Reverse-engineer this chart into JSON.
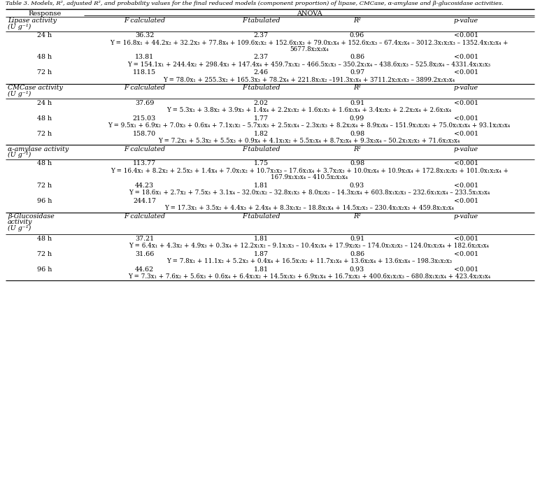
{
  "title": "Table 3. Models, R², adjusted R², and probability values for the final reduced models (component proportion) of lipase, CMCase, α-amylase and β-glucosidase activities.",
  "sections": [
    {
      "name": "Lipase activity\n(U g⁻¹)",
      "rows": [
        {
          "label": "24 h",
          "fcalc": "36.32",
          "ftab": "2.37",
          "r2": "0.96",
          "pval": "<0.001",
          "eq1": "Y = 16.8x₁ + 44.2x₂ + 32.2x₃ + 77.8x₄ + 109.6x₁x₂ + 152.6x₁x₃ + 79.0x₁x₄ + 152.6x₂x₃ – 67.4x₂x₄ – 3012.3x₁x₂x₃ – 1352.4x₁x₂x₄ +",
          "eq2": "5677.8x₂x₃x₄"
        },
        {
          "label": "48 h",
          "fcalc": "13.81",
          "ftab": "2.37",
          "r2": "0.86",
          "pval": "<0.001",
          "eq1": "Y = 154.1x₁ + 244.4x₂ + 298.4x₃ + 147.4x₄ + 459.7x₁x₂ – 466.5x₁x₃ – 350.2x₁x₄ – 438.6x₂x₃ – 525.8x₂x₄ – 4331.4x₁x₂x₃",
          "eq2": ""
        },
        {
          "label": "72 h",
          "fcalc": "118.15",
          "ftab": "2.46",
          "r2": "0.97",
          "pval": "<0.001",
          "eq1": "Y = 78.0x₁ + 255.3x₂ + 165.3x₃ + 78.2x₄ + 221.8x₁x₂ –191.3x₁x₄ + 3711.2x₂x₃x₃ – 3899.2x₂x₃x₄",
          "eq2": ""
        }
      ]
    },
    {
      "name": "CMCase activity\n(U g⁻¹)",
      "rows": [
        {
          "label": "24 h",
          "fcalc": "37.69",
          "ftab": "2.02",
          "r2": "0.91",
          "pval": "<0.001",
          "eq1": "Y = 5.3x₁ + 3.8x₂ + 3.9x₃ + 1.4x₄ + 2.2x₁x₂ + 1.6x₁x₃ + 1.6x₁x₄ + 3.4x₂x₃ + 2.2x₂x₄ + 2.6x₃x₄",
          "eq2": ""
        },
        {
          "label": "48 h",
          "fcalc": "215.03",
          "ftab": "1.77",
          "r2": "0.99",
          "pval": "<0.001",
          "eq1": "Y = 9.5x₁ + 6.9x₂ + 7.0x₃ + 0.6x₄ + 7.1x₁x₂ – 5.7x₁x₃ + 2.5x₁x₄ – 2.3x₂x₃ + 8.2x₂x₄ + 8.9x₃x₄ – 151.9x₁x₂x₃ + 75.0x₁x₃x₄ + 93.1x₂x₃x₄",
          "eq2": ""
        },
        {
          "label": "72 h",
          "fcalc": "158.70",
          "ftab": "1.82",
          "r2": "0.98",
          "pval": "<0.001",
          "eq1": "Y = 7.2x₁ + 5.3x₂ + 5.5x₃ + 0.9x₄ + 4.1x₁x₂ + 5.5x₁x₄ + 8.7x₂x₄ + 9.3x₃x₄ – 50.2x₁x₂x₃ + 71.6x₂x₃x₄",
          "eq2": ""
        }
      ]
    },
    {
      "name": "α-amylase activity\n(U g⁻¹)",
      "rows": [
        {
          "label": "48 h",
          "fcalc": "113.77",
          "ftab": "1.75",
          "r2": "0.98",
          "pval": "<0.001",
          "eq1": "Y = 16.4x₁ + 8.2x₂ + 2.5x₃ + 1.4x₄ + 7.0x₁x₂ + 10.7x₁x₃ – 17.6x₁x₄ + 3.7x₂x₃ + 10.0x₂x₄ + 10.9x₃x₄ + 172.8x₁x₂x₃ + 101.0x₁x₂x₄ +",
          "eq2": "167.9x₁x₃x₄ – 410.5x₂x₃x₄"
        },
        {
          "label": "72 h",
          "fcalc": "44.23",
          "ftab": "1.81",
          "r2": "0.93",
          "pval": "<0.001",
          "eq1": "Y = 18.6x₁ + 2.7x₂ + 7.5x₃ + 3.1x₄ – 32.0x₁x₂ – 32.8x₁x₃ + 8.0x₂x₃ – 14.3x₂x₄ + 603.8x₁x₂x₃ – 232.6x₁x₂x₄ – 233.5x₁x₃x₄",
          "eq2": ""
        },
        {
          "label": "96 h",
          "fcalc": "244.17",
          "ftab": "",
          "r2": "",
          "pval": "<0.001",
          "eq1": "Y = 17.3x₁ + 3.5x₂ + 4.4x₃ + 2.4x₄ + 8.3x₁x₂ – 18.8x₁x₄ + 14.5x₂x₃ – 230.4x₁x₂x₃ + 459.8x₁x₂x₄",
          "eq2": ""
        }
      ]
    },
    {
      "name": "β-Glucosidase\nactivity\n(U g⁻¹)",
      "rows": [
        {
          "label": "48 h",
          "fcalc": "37.21",
          "ftab": "1.81",
          "r2": "0.91",
          "pval": "<0.001",
          "eq1": "Y = 6.4x₁ + 4.3x₂ + 4.9x₃ + 0.3x₄ + 12.2x₁x₂ – 9.1x₁x₃ – 10.4x₁x₄ + 17.9x₂x₃ – 174.0x₁x₂x₃ – 124.0x₁x₂x₄ + 182.6x₂x₃x₄",
          "eq2": ""
        },
        {
          "label": "72 h",
          "fcalc": "31.66",
          "ftab": "1.87",
          "r2": "0.86",
          "pval": "<0.001",
          "eq1": "Y = 7.8x₁ + 11.1x₂ + 5.2x₃ + 0.4x₄ + 16.5x₁x₂ + 11.7x₁x₄ + 13.6x₂x₄ + 13.6x₃x₄ – 198.3x₁x₂x₃",
          "eq2": ""
        },
        {
          "label": "96 h",
          "fcalc": "44.62",
          "ftab": "1.81",
          "r2": "0.93",
          "pval": "<0.001",
          "eq1": "Y = 7.3x₁ + 7.6x₂ + 5.6x₃ + 0.6x₄ + 6.4x₁x₂ + 14.5x₁x₃ + 6.9x₁x₄ + 16.7x₂x₃ + 400.6x₁x₂x₃ – 680.8x₁x₂x₄ + 423.4x₂x₃x₄",
          "eq2": ""
        }
      ]
    }
  ]
}
